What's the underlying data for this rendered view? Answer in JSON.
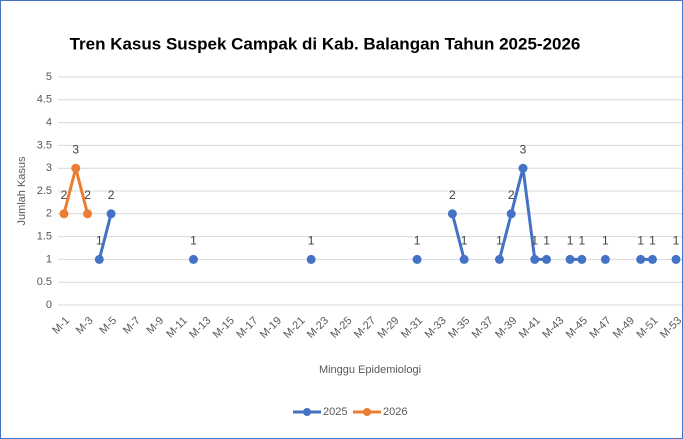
{
  "chart_data": {
    "type": "line",
    "title": "Tren Kasus Suspek Campak di Kab. Balangan Tahun 2025-2026",
    "x_label": "Minggu Epidemiologi",
    "y_label": "Jumlah Kasus",
    "categories": [
      "M-1",
      null,
      "M-3",
      null,
      "M-5",
      null,
      "M-7",
      null,
      "M-9",
      null,
      "M-11",
      null,
      "M-13",
      null,
      "M-15",
      null,
      "M-17",
      null,
      "M-19",
      null,
      "M-21",
      null,
      "M-23",
      null,
      "M-25",
      null,
      "M-27",
      null,
      "M-29",
      null,
      "M-31",
      null,
      "M-33",
      null,
      "M-35",
      null,
      "M-37",
      null,
      "M-39",
      null,
      "M-41",
      null,
      "M-43",
      null,
      "M-45",
      null,
      "M-47",
      null,
      "M-49",
      null,
      "M-51",
      null,
      "M-53"
    ],
    "series": [
      {
        "name": "2025",
        "color": "#4472c4",
        "values": [
          null,
          null,
          null,
          1,
          2,
          null,
          null,
          null,
          null,
          null,
          null,
          1,
          null,
          null,
          null,
          null,
          null,
          null,
          null,
          null,
          null,
          1,
          null,
          null,
          null,
          null,
          null,
          null,
          null,
          null,
          1,
          null,
          null,
          2,
          1,
          null,
          null,
          1,
          2,
          3,
          1,
          1,
          null,
          1,
          1,
          null,
          1,
          null,
          null,
          1,
          1,
          null,
          1
        ]
      },
      {
        "name": "2026",
        "color": "#ed7d31",
        "values": [
          2,
          3,
          2,
          null,
          null,
          null,
          null,
          null,
          null,
          null,
          null,
          null,
          null,
          null,
          null,
          null,
          null,
          null,
          null,
          null,
          null,
          null,
          null,
          null,
          null,
          null,
          null,
          null,
          null,
          null,
          null,
          null,
          null,
          null,
          null,
          null,
          null,
          null,
          null,
          null,
          null,
          null,
          null,
          null,
          null,
          null,
          null,
          null,
          null,
          null,
          null,
          null,
          null
        ]
      }
    ],
    "ylim": [
      0,
      5
    ],
    "yticks": [
      0,
      0.5,
      1,
      1.5,
      2,
      2.5,
      3,
      3.5,
      4,
      4.5,
      5
    ],
    "grid": true,
    "legend": "bottom"
  }
}
